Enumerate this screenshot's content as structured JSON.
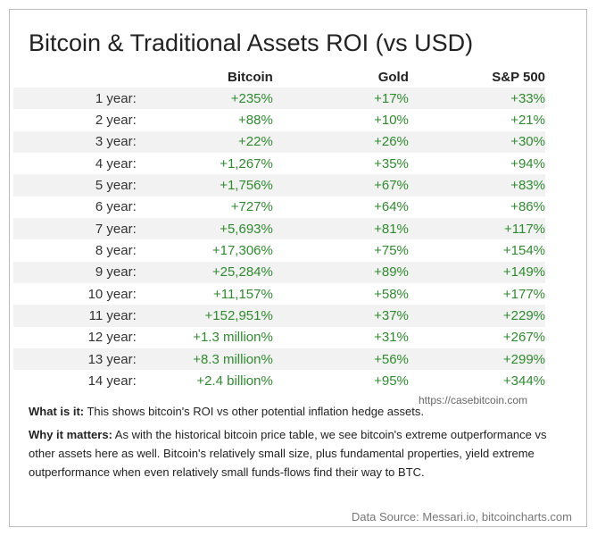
{
  "title": "Bitcoin & Traditional Assets ROI (vs USD)",
  "columns": [
    "Bitcoin",
    "Gold",
    "S&P 500"
  ],
  "rows": [
    {
      "period": "1 year:",
      "bitcoin": "+235%",
      "gold": "+17%",
      "sp500": "+33%"
    },
    {
      "period": "2 year:",
      "bitcoin": "+88%",
      "gold": "+10%",
      "sp500": "+21%"
    },
    {
      "period": "3 year:",
      "bitcoin": "+22%",
      "gold": "+26%",
      "sp500": "+30%"
    },
    {
      "period": "4 year:",
      "bitcoin": "+1,267%",
      "gold": "+35%",
      "sp500": "+94%"
    },
    {
      "period": "5 year:",
      "bitcoin": "+1,756%",
      "gold": "+67%",
      "sp500": "+83%"
    },
    {
      "period": "6 year:",
      "bitcoin": "+727%",
      "gold": "+64%",
      "sp500": "+86%"
    },
    {
      "period": "7 year:",
      "bitcoin": "+5,693%",
      "gold": "+81%",
      "sp500": "+117%"
    },
    {
      "period": "8 year:",
      "bitcoin": "+17,306%",
      "gold": "+75%",
      "sp500": "+154%"
    },
    {
      "period": "9 year:",
      "bitcoin": "+25,284%",
      "gold": "+89%",
      "sp500": "+149%"
    },
    {
      "period": "10 year:",
      "bitcoin": "+11,157%",
      "gold": "+58%",
      "sp500": "+177%"
    },
    {
      "period": "11 year:",
      "bitcoin": "+152,951%",
      "gold": "+37%",
      "sp500": "+229%"
    },
    {
      "period": "12 year:",
      "bitcoin": "+1.3 million%",
      "gold": "+31%",
      "sp500": "+267%"
    },
    {
      "period": "13 year:",
      "bitcoin": "+8.3 million%",
      "gold": "+56%",
      "sp500": "+299%"
    },
    {
      "period": "14 year:",
      "bitcoin": "+2.4 billion%",
      "gold": "+95%",
      "sp500": "+344%"
    }
  ],
  "watermark": "https://casebitcoin.com",
  "what_is_it": {
    "label": "What is it:",
    "text": " This shows bitcoin's ROI vs other potential inflation hedge assets."
  },
  "why_it_matters": {
    "label": "Why it matters:",
    "text": " As with the historical bitcoin price table, we see bitcoin's extreme outperformance vs other assets here as well. Bitcoin's relatively small size, plus fundamental properties, yield extreme outperformance when even relatively small funds-flows find their way to BTC."
  },
  "data_source": "Data Source: Messari.io, bitcoincharts.com",
  "colors": {
    "positive": "#2e8b2e",
    "stripe": "#f2f2f2",
    "border": "#bcbcbc"
  }
}
